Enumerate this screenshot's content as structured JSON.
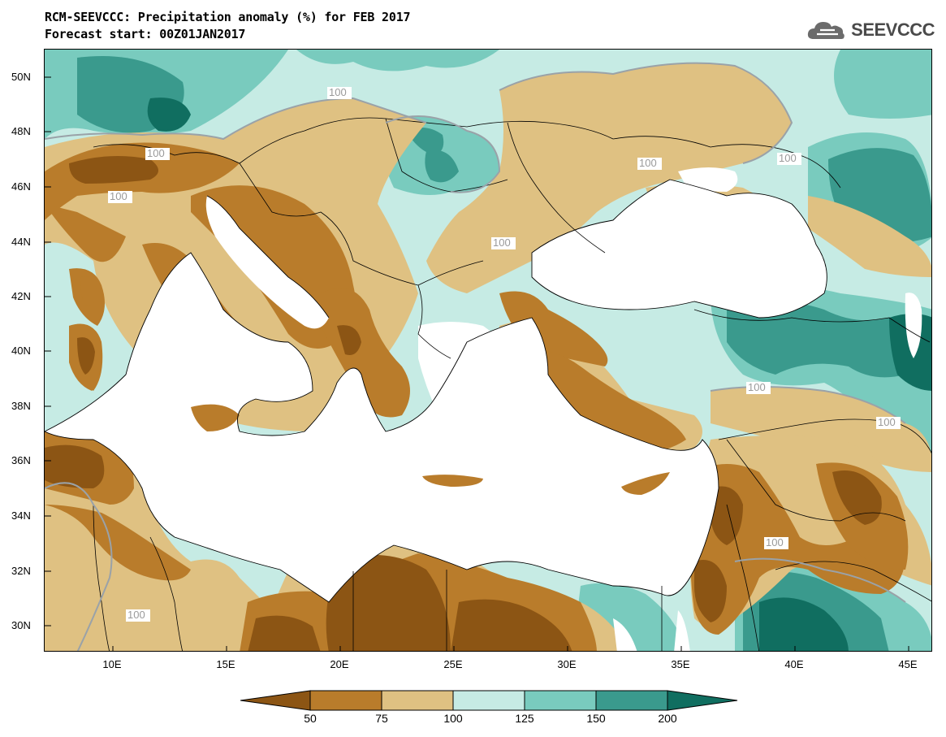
{
  "header": {
    "title": "RCM-SEEVCCC: Precipitation anomaly (%) for FEB 2017",
    "subtitle": "Forecast start: 00Z01JAN2017",
    "logo_text": "SEEVCCC",
    "logo_icon": "cloud-icon"
  },
  "map": {
    "lat_ticks": [
      "50N",
      "48N",
      "46N",
      "44N",
      "42N",
      "40N",
      "38N",
      "36N",
      "34N",
      "32N",
      "30N"
    ],
    "lon_ticks": [
      "10E",
      "15E",
      "20E",
      "25E",
      "30E",
      "35E",
      "40E",
      "45E"
    ],
    "contour_label": "100"
  },
  "colorbar": {
    "ticks": [
      "50",
      "75",
      "100",
      "125",
      "150",
      "200"
    ],
    "colors": {
      "below50": "#8c5514",
      "50-75": "#b97c2b",
      "75-100": "#dfc182",
      "100-125": "#c6ebe4",
      "125-150": "#79cbbe",
      "150-200": "#3a9a8d",
      "above200": "#106e60",
      "sea": "#ffffff",
      "contour": "#9aa2a8"
    }
  }
}
